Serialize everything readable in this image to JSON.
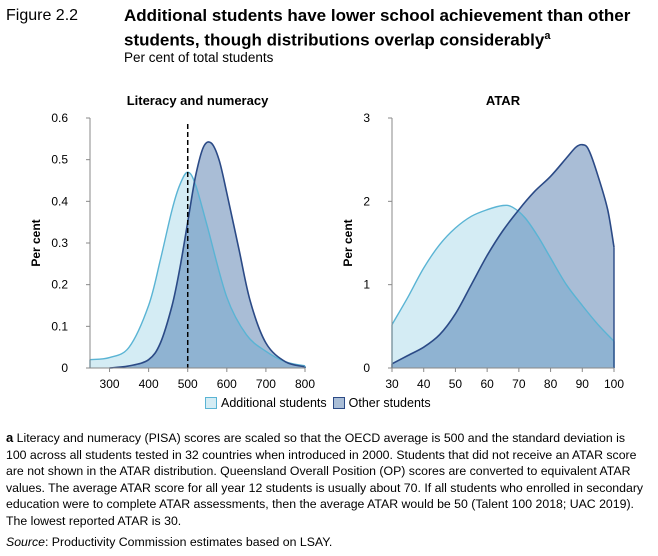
{
  "figure": {
    "label": "Figure 2.2",
    "title": "Additional students have lower school achievement than other students, though distributions overlap considerably",
    "title_marker": "a",
    "subtitle": "Per cent of total students"
  },
  "colors": {
    "additional_fill": "#d4ecf4",
    "additional_line": "#5ab4d4",
    "other_fill": "#a9bdd6",
    "other_line": "#2b4a86",
    "overlap_fill": "#8fb3d2"
  },
  "legend": {
    "additional": "Additional students",
    "other": "Other students"
  },
  "chart_data": [
    {
      "type": "area",
      "title": "Literacy and numeracy",
      "xlabel": "",
      "ylabel": "Per cent",
      "xlim": [
        250,
        800
      ],
      "ylim": [
        0,
        0.6
      ],
      "xticks": [
        300,
        400,
        500,
        600,
        700,
        800
      ],
      "yticks": [
        0,
        0.1,
        0.2,
        0.3,
        0.4,
        0.5,
        0.6
      ],
      "ytick_labels": [
        "0",
        "0.1",
        "0.2",
        "0.3",
        "0.4",
        "0.5",
        "0.6"
      ],
      "reference_line": {
        "x": 500,
        "style": "dashed"
      },
      "series": [
        {
          "name": "Additional students",
          "x": [
            250,
            300,
            350,
            400,
            430,
            460,
            480,
            500,
            520,
            550,
            600,
            650,
            700,
            750,
            800
          ],
          "values": [
            0.02,
            0.025,
            0.05,
            0.15,
            0.26,
            0.38,
            0.44,
            0.47,
            0.44,
            0.34,
            0.17,
            0.08,
            0.04,
            0.015,
            0.005
          ]
        },
        {
          "name": "Other students",
          "x": [
            300,
            350,
            400,
            430,
            460,
            480,
            500,
            520,
            540,
            560,
            580,
            600,
            630,
            660,
            700,
            750,
            800
          ],
          "values": [
            0.0,
            0.005,
            0.02,
            0.06,
            0.15,
            0.24,
            0.35,
            0.46,
            0.53,
            0.54,
            0.5,
            0.42,
            0.29,
            0.16,
            0.06,
            0.015,
            0.003
          ]
        }
      ]
    },
    {
      "type": "area",
      "title": "ATAR",
      "xlabel": "",
      "ylabel": "Per cent",
      "xlim": [
        30,
        100
      ],
      "ylim": [
        0,
        3
      ],
      "xticks": [
        30,
        40,
        50,
        60,
        70,
        80,
        90,
        100
      ],
      "yticks": [
        0,
        1,
        2,
        3
      ],
      "ytick_labels": [
        "0",
        "1",
        "2",
        "3"
      ],
      "series": [
        {
          "name": "Additional students",
          "x": [
            30,
            35,
            40,
            45,
            50,
            55,
            60,
            65,
            68,
            72,
            76,
            80,
            85,
            90,
            95,
            100
          ],
          "values": [
            0.52,
            0.85,
            1.2,
            1.48,
            1.68,
            1.82,
            1.9,
            1.95,
            1.93,
            1.8,
            1.58,
            1.32,
            1.0,
            0.75,
            0.52,
            0.32
          ]
        },
        {
          "name": "Other students",
          "x": [
            30,
            35,
            40,
            45,
            50,
            55,
            60,
            65,
            70,
            75,
            80,
            85,
            88,
            90,
            92,
            95,
            98,
            100
          ],
          "values": [
            0.05,
            0.15,
            0.25,
            0.4,
            0.65,
            1.0,
            1.35,
            1.65,
            1.9,
            2.12,
            2.3,
            2.52,
            2.65,
            2.68,
            2.62,
            2.3,
            1.9,
            1.45
          ]
        }
      ]
    }
  ],
  "note": {
    "marker": "a",
    "text": "Literacy and numeracy (PISA) scores are scaled so that the OECD average is 500 and the standard deviation is 100 across all students tested in 32 countries when introduced in 2000. Students that did not receive an ATAR score are not shown in the ATAR distribution. Queensland Overall Position (OP) scores are converted to equivalent ATAR values. The average ATAR score for all year 12 students is usually about 70. If all students who enrolled in secondary education were to complete ATAR assessments, then the average ATAR would be 50 (Talent 100 2018; UAC 2019). The lowest reported ATAR is 30."
  },
  "source": {
    "label": "Source",
    "text": ": Productivity Commission estimates based on LSAY."
  }
}
